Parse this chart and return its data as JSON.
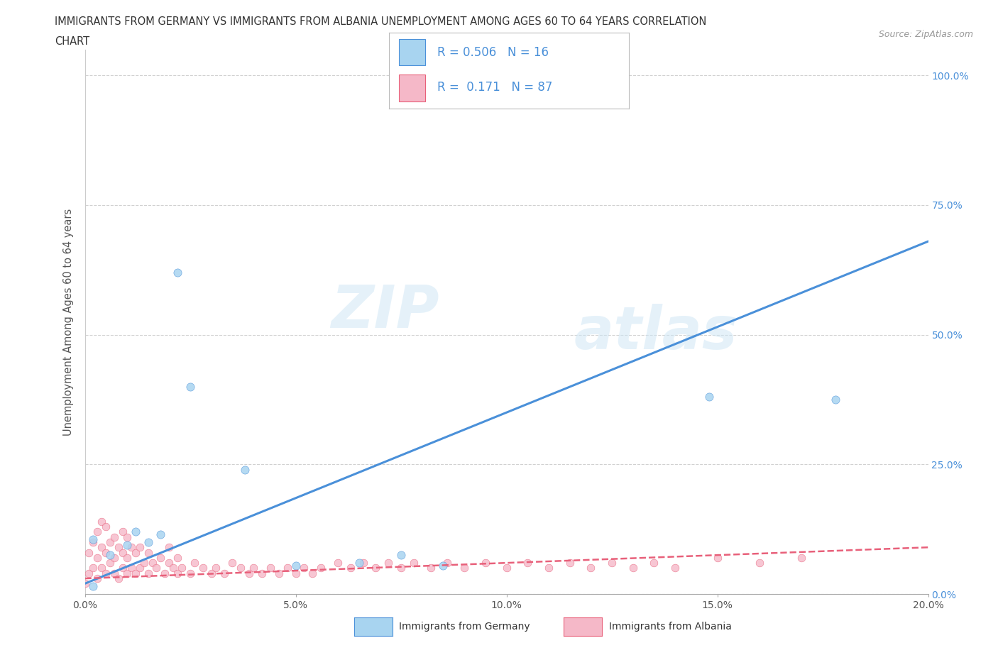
{
  "title_line1": "IMMIGRANTS FROM GERMANY VS IMMIGRANTS FROM ALBANIA UNEMPLOYMENT AMONG AGES 60 TO 64 YEARS CORRELATION",
  "title_line2": "CHART",
  "source_text": "Source: ZipAtlas.com",
  "ylabel": "Unemployment Among Ages 60 to 64 years",
  "xlim": [
    0.0,
    0.2
  ],
  "ylim": [
    0.0,
    1.05
  ],
  "xticks": [
    0.0,
    0.05,
    0.1,
    0.15,
    0.2
  ],
  "xticklabels": [
    "0.0%",
    "5.0%",
    "10.0%",
    "15.0%",
    "20.0%"
  ],
  "yticks": [
    0.0,
    0.25,
    0.5,
    0.75,
    1.0
  ],
  "yticklabels": [
    "0.0%",
    "25.0%",
    "50.0%",
    "75.0%",
    "100.0%"
  ],
  "germany_color": "#a8d4f0",
  "albania_color": "#f5b8c8",
  "germany_line_color": "#4a90d9",
  "albania_line_color": "#e8607a",
  "R_germany": "0.506",
  "N_germany": "16",
  "R_albania": "0.171",
  "N_albania": "87",
  "legend_germany": "Immigrants from Germany",
  "legend_albania": "Immigrants from Albania",
  "watermark_zip": "ZIP",
  "watermark_atlas": "atlas",
  "background_color": "#ffffff",
  "grid_color": "#cccccc",
  "title_color": "#333333",
  "axis_color": "#555555",
  "germany_scatter_x": [
    0.002,
    0.002,
    0.006,
    0.01,
    0.012,
    0.015,
    0.018,
    0.022,
    0.025,
    0.038,
    0.05,
    0.065,
    0.075,
    0.085,
    0.148,
    0.178
  ],
  "germany_scatter_y": [
    0.015,
    0.105,
    0.075,
    0.095,
    0.12,
    0.1,
    0.115,
    0.62,
    0.4,
    0.24,
    0.055,
    0.06,
    0.075,
    0.055,
    0.38,
    0.375
  ],
  "albania_scatter_x": [
    0.0,
    0.001,
    0.001,
    0.002,
    0.002,
    0.003,
    0.003,
    0.003,
    0.004,
    0.004,
    0.004,
    0.005,
    0.005,
    0.005,
    0.006,
    0.006,
    0.007,
    0.007,
    0.007,
    0.008,
    0.008,
    0.009,
    0.009,
    0.009,
    0.01,
    0.01,
    0.01,
    0.011,
    0.011,
    0.012,
    0.012,
    0.013,
    0.013,
    0.014,
    0.015,
    0.015,
    0.016,
    0.017,
    0.018,
    0.019,
    0.02,
    0.02,
    0.021,
    0.022,
    0.022,
    0.023,
    0.025,
    0.026,
    0.028,
    0.03,
    0.031,
    0.033,
    0.035,
    0.037,
    0.039,
    0.04,
    0.042,
    0.044,
    0.046,
    0.048,
    0.05,
    0.052,
    0.054,
    0.056,
    0.06,
    0.063,
    0.066,
    0.069,
    0.072,
    0.075,
    0.078,
    0.082,
    0.086,
    0.09,
    0.095,
    0.1,
    0.105,
    0.11,
    0.115,
    0.12,
    0.125,
    0.13,
    0.135,
    0.14,
    0.15,
    0.16,
    0.17
  ],
  "albania_scatter_y": [
    0.02,
    0.04,
    0.08,
    0.05,
    0.1,
    0.03,
    0.07,
    0.12,
    0.05,
    0.09,
    0.14,
    0.04,
    0.08,
    0.13,
    0.06,
    0.1,
    0.04,
    0.07,
    0.11,
    0.03,
    0.09,
    0.05,
    0.08,
    0.12,
    0.04,
    0.07,
    0.11,
    0.05,
    0.09,
    0.04,
    0.08,
    0.05,
    0.09,
    0.06,
    0.04,
    0.08,
    0.06,
    0.05,
    0.07,
    0.04,
    0.06,
    0.09,
    0.05,
    0.04,
    0.07,
    0.05,
    0.04,
    0.06,
    0.05,
    0.04,
    0.05,
    0.04,
    0.06,
    0.05,
    0.04,
    0.05,
    0.04,
    0.05,
    0.04,
    0.05,
    0.04,
    0.05,
    0.04,
    0.05,
    0.06,
    0.05,
    0.06,
    0.05,
    0.06,
    0.05,
    0.06,
    0.05,
    0.06,
    0.05,
    0.06,
    0.05,
    0.06,
    0.05,
    0.06,
    0.05,
    0.06,
    0.05,
    0.06,
    0.05,
    0.07,
    0.06,
    0.07
  ],
  "ger_line_x0": 0.0,
  "ger_line_y0": 0.02,
  "ger_line_x1": 0.2,
  "ger_line_y1": 0.68,
  "alb_line_x0": 0.0,
  "alb_line_y0": 0.03,
  "alb_line_x1": 0.2,
  "alb_line_y1": 0.09
}
